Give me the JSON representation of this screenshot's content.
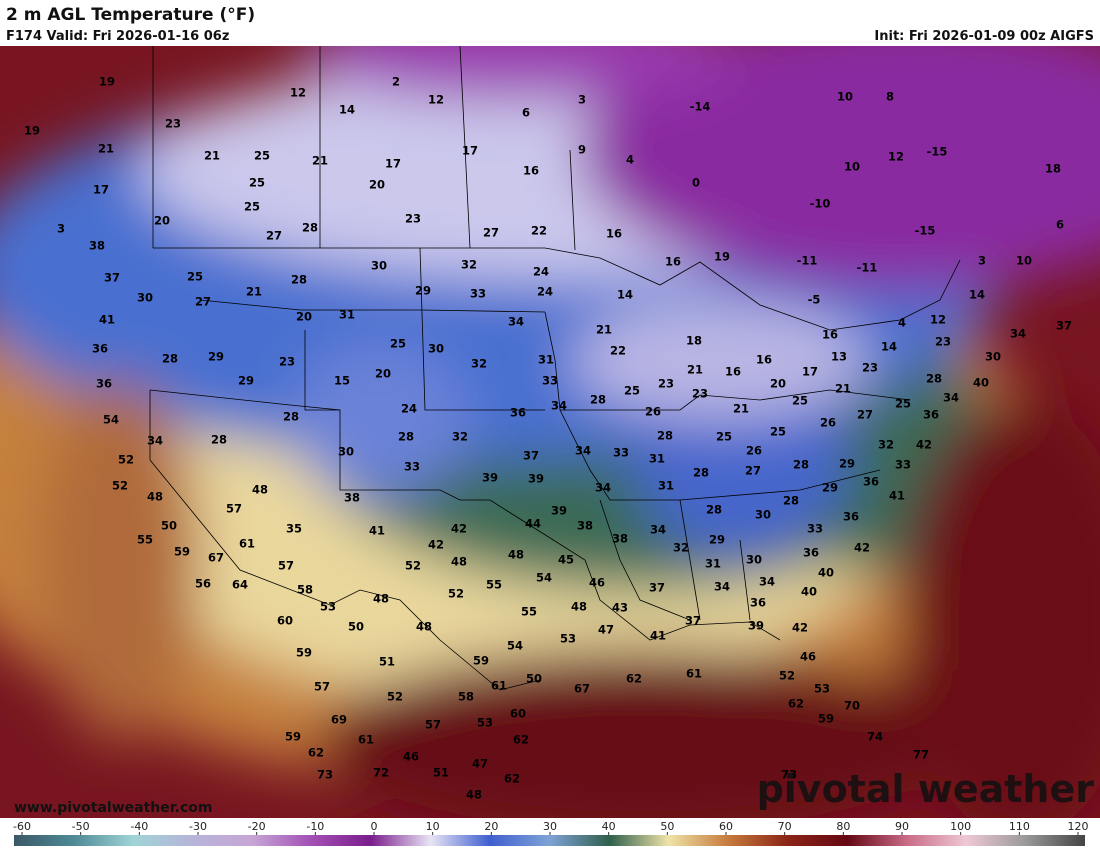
{
  "header": {
    "title": "2 m AGL Temperature (°F)",
    "valid": "F174 Valid: Fri 2026-01-16 06z",
    "init": "Init: Fri 2026-01-09 00z AIGFS"
  },
  "map": {
    "temperatures": [
      19,
      2,
      12,
      12,
      3,
      -14,
      10,
      8,
      14,
      6,
      19,
      23,
      21,
      21,
      25,
      21,
      17,
      17,
      9,
      4,
      10,
      12,
      -15,
      16,
      18,
      0,
      17,
      25,
      20,
      20,
      25,
      23,
      -10,
      3,
      27,
      28,
      27,
      22,
      16,
      6,
      -15,
      38,
      37,
      25,
      30,
      32,
      24,
      16,
      19,
      -11,
      -11,
      3,
      10,
      21,
      28,
      29,
      33,
      24,
      14,
      -5,
      14,
      30,
      27,
      41,
      20,
      31,
      34,
      21,
      4,
      12,
      34,
      37,
      36,
      28,
      29,
      25,
      30,
      18,
      16,
      22,
      23,
      14,
      30,
      23,
      15,
      20,
      32,
      31,
      16,
      21,
      16,
      13,
      17,
      23,
      28,
      40,
      36,
      29,
      33,
      23,
      20,
      21,
      25,
      28,
      23,
      25,
      25,
      34,
      54,
      28,
      24,
      36,
      34,
      26,
      21,
      27,
      26,
      36,
      34,
      28,
      28,
      32,
      28,
      25,
      25,
      42,
      52,
      30,
      37,
      34,
      33,
      26,
      31,
      33,
      28,
      29,
      32,
      33,
      52,
      48,
      48,
      38,
      39,
      39,
      27,
      28,
      36,
      29,
      34,
      31,
      41,
      57,
      39,
      28,
      30,
      28,
      50,
      35,
      41,
      42,
      44,
      38,
      34,
      33,
      36,
      55,
      59,
      67,
      61,
      42,
      38,
      29,
      30,
      32,
      36,
      42,
      57,
      52,
      48,
      48,
      45,
      31,
      40,
      56,
      64,
      58,
      55,
      54,
      46,
      37,
      34,
      34,
      40,
      53,
      48,
      52,
      36,
      48,
      43,
      55,
      60,
      50,
      48,
      37,
      39,
      42,
      47,
      53,
      41,
      59,
      54,
      46,
      59,
      51,
      61,
      67,
      62,
      61,
      52,
      50,
      53,
      57,
      52,
      58,
      62,
      70,
      59,
      69,
      57,
      53,
      60,
      59,
      61,
      62,
      62,
      74,
      77,
      46,
      47,
      51,
      73,
      72,
      62,
      73,
      48
    ]
  },
  "footer": {
    "url": "www.pivotalweather.com",
    "brand": "pivotal weather"
  },
  "colorbar": {
    "ticks": [
      -60,
      -50,
      -40,
      -30,
      -20,
      -10,
      0,
      10,
      20,
      30,
      40,
      50,
      60,
      70,
      80,
      90,
      100,
      110,
      120
    ]
  }
}
